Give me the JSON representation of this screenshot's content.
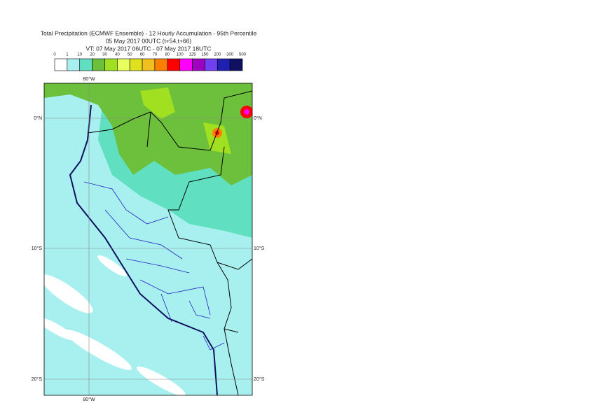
{
  "header": {
    "title": "Total Precipitation (ECMWF Ensemble) - 12 Hourly Accumulation - 95th Percentile",
    "run": "05 May 2017 00UTC (t+54,t+66)",
    "valid": "VT: 07 May 2017 06UTC - 07 May 2017 18UTC"
  },
  "legend": {
    "ticks": [
      0,
      1,
      10,
      20,
      30,
      40,
      50,
      60,
      70,
      80,
      100,
      125,
      150,
      200,
      300,
      500
    ],
    "colors": [
      "#ffffff",
      "#a8f0f0",
      "#60e0c0",
      "#6cc03c",
      "#a0e020",
      "#e8ff60",
      "#e0e020",
      "#f0c020",
      "#ff8000",
      "#ff0000",
      "#ff00ff",
      "#a000c0",
      "#7040f0",
      "#2020b0",
      "#101060"
    ]
  },
  "map": {
    "longitudes": [
      "80°W"
    ],
    "latitudes": [
      "0°N",
      "10°S",
      "20°S"
    ]
  }
}
